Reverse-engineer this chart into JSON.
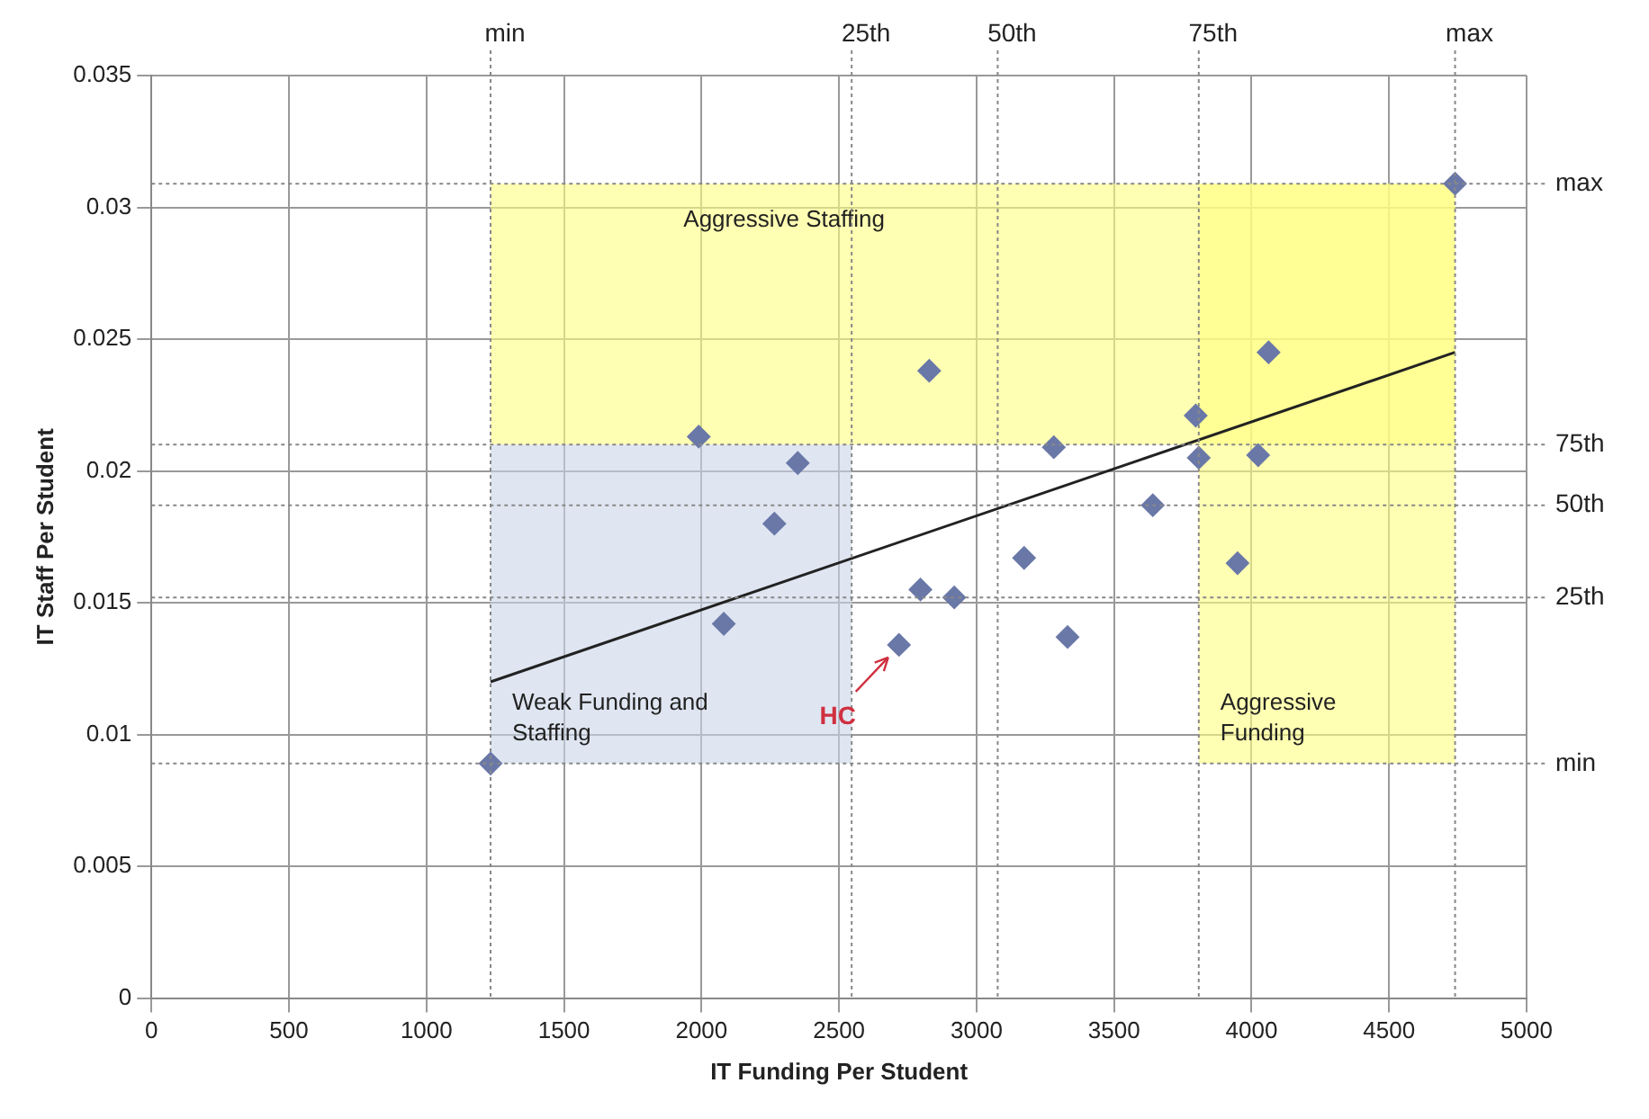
{
  "chart_data": {
    "type": "scatter",
    "xlabel": "IT Funding Per Student",
    "ylabel": "IT Staff Per Student",
    "x": [
      1233,
      1990,
      2350,
      2265,
      2081,
      4740,
      2828,
      4062,
      3797,
      3281,
      3808,
      4024,
      3641,
      3173,
      3949,
      2796,
      2919,
      3331,
      2718
    ],
    "series": [
      {
        "type": "scatter",
        "color": "#6a78a8",
        "marker": "diamond",
        "values": [
          0.0089,
          0.0213,
          0.0203,
          0.018,
          0.0142,
          0.0309,
          0.0238,
          0.0245,
          0.0221,
          0.0209,
          0.0205,
          0.0206,
          0.0187,
          0.0167,
          0.0165,
          0.0155,
          0.0152,
          0.0137,
          0.0134
        ]
      },
      {
        "type": "line",
        "color": "#222222",
        "x": [
          1233,
          4740
        ],
        "values": [
          0.012,
          0.0245
        ]
      }
    ],
    "xlim": [
      0,
      5000
    ],
    "xticks": [
      0,
      500,
      1000,
      1500,
      2000,
      2500,
      3000,
      3500,
      4000,
      4500,
      5000
    ],
    "ylim": [
      0,
      0.035
    ],
    "yticks": [
      0,
      0.005,
      0.01,
      0.015,
      0.02,
      0.025,
      0.03,
      0.035
    ],
    "grid": true,
    "legend": false,
    "ref_lines": [
      {
        "axis": "x",
        "value": 1233,
        "label": "min",
        "line_style": "dotted"
      },
      {
        "axis": "x",
        "value": 2546,
        "label": "25th",
        "line_style": "dotted"
      },
      {
        "axis": "x",
        "value": 3077,
        "label": "50th",
        "line_style": "dotted"
      },
      {
        "axis": "x",
        "value": 3808,
        "label": "75th",
        "line_style": "dotted"
      },
      {
        "axis": "x",
        "value": 4740,
        "label": "max",
        "line_style": "dotted"
      },
      {
        "axis": "y",
        "value": 0.0309,
        "label": "max",
        "line_style": "dotted"
      },
      {
        "axis": "y",
        "value": 0.021,
        "label": "75th",
        "line_style": "dotted"
      },
      {
        "axis": "y",
        "value": 0.0187,
        "label": "50th",
        "line_style": "dotted"
      },
      {
        "axis": "y",
        "value": 0.0152,
        "label": "25th",
        "line_style": "dotted"
      },
      {
        "axis": "y",
        "value": 0.0089,
        "label": "min",
        "line_style": "dotted"
      }
    ],
    "bands": [
      {
        "axis": "y",
        "from": 0.021,
        "to": 0.0309,
        "label": "Aggressive Staffing",
        "color": "#ffff80"
      },
      {
        "axis": "x",
        "from": 3808,
        "to": 4740,
        "label": "Aggressive Funding",
        "color": "#ffff80"
      },
      {
        "axis": "x",
        "from": 1233,
        "to": 2546,
        "label": "Weak Funding and Staffing",
        "color": "#c9d6ea"
      }
    ],
    "annotations": [
      {
        "text": "HC",
        "x": 2718,
        "y": 0.0134
      }
    ]
  }
}
